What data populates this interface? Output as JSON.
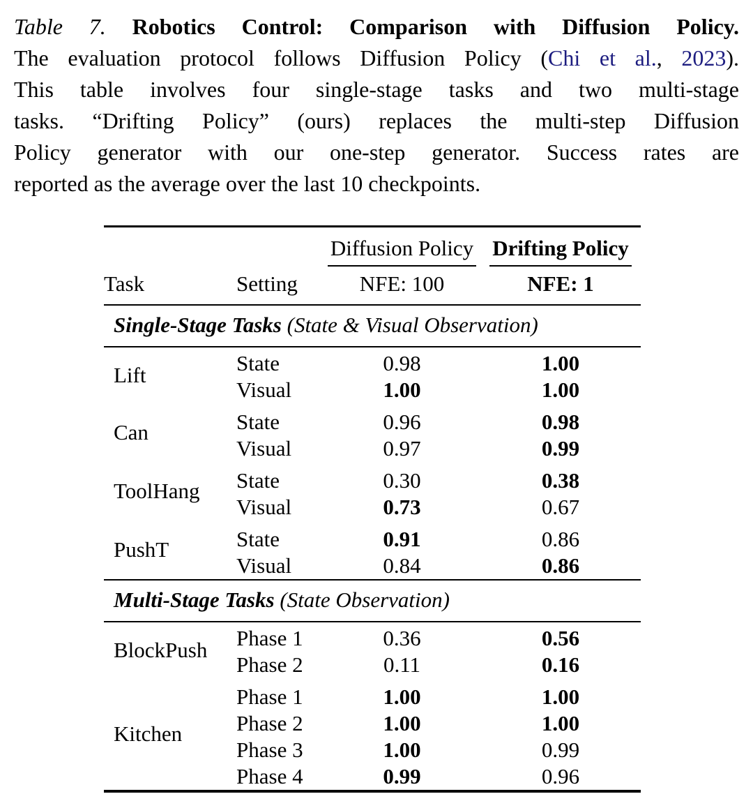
{
  "page": {
    "background": "#ffffff",
    "text_color": "#000000",
    "link_color": "#1d1d80"
  },
  "caption": {
    "label": "Table 7.",
    "title": "Robotics Control: Comparison with Diffusion Policy.",
    "line2_pre": "The evaluation protocol follows Diffusion Policy (",
    "cite_authors": "Chi et al.",
    "cite_sep": ", ",
    "cite_year": "2023",
    "line2_post": ").",
    "line3": "This table involves four single-stage tasks and two multi-stage",
    "line4": "tasks. “Drifting Policy” (ours) replaces the multi-step Diffusion",
    "line5": "Policy generator with our one-step generator. Success rates are",
    "line6": "reported as the average over the last 10 checkpoints."
  },
  "table": {
    "col_headers": {
      "task": "Task",
      "setting": "Setting"
    },
    "groups": [
      {
        "name": "Diffusion Policy",
        "sub": "NFE: 100"
      },
      {
        "name": "Drifting Policy",
        "sub": "NFE: 1"
      }
    ],
    "sections": [
      {
        "title": "Single-Stage Tasks",
        "note": "(State & Visual Observation)",
        "tasks": [
          {
            "task": "Lift",
            "rows": [
              {
                "setting": "State",
                "diffusion": "0.98",
                "diffusion_bold": false,
                "drifting": "1.00",
                "drifting_bold": true
              },
              {
                "setting": "Visual",
                "diffusion": "1.00",
                "diffusion_bold": true,
                "drifting": "1.00",
                "drifting_bold": true
              }
            ]
          },
          {
            "task": "Can",
            "rows": [
              {
                "setting": "State",
                "diffusion": "0.96",
                "diffusion_bold": false,
                "drifting": "0.98",
                "drifting_bold": true
              },
              {
                "setting": "Visual",
                "diffusion": "0.97",
                "diffusion_bold": false,
                "drifting": "0.99",
                "drifting_bold": true
              }
            ]
          },
          {
            "task": "ToolHang",
            "rows": [
              {
                "setting": "State",
                "diffusion": "0.30",
                "diffusion_bold": false,
                "drifting": "0.38",
                "drifting_bold": true
              },
              {
                "setting": "Visual",
                "diffusion": "0.73",
                "diffusion_bold": true,
                "drifting": "0.67",
                "drifting_bold": false
              }
            ]
          },
          {
            "task": "PushT",
            "rows": [
              {
                "setting": "State",
                "diffusion": "0.91",
                "diffusion_bold": true,
                "drifting": "0.86",
                "drifting_bold": false
              },
              {
                "setting": "Visual",
                "diffusion": "0.84",
                "diffusion_bold": false,
                "drifting": "0.86",
                "drifting_bold": true
              }
            ]
          }
        ]
      },
      {
        "title": "Multi-Stage Tasks",
        "note": "(State Observation)",
        "tasks": [
          {
            "task": "BlockPush",
            "rows": [
              {
                "setting": "Phase 1",
                "diffusion": "0.36",
                "diffusion_bold": false,
                "drifting": "0.56",
                "drifting_bold": true
              },
              {
                "setting": "Phase 2",
                "diffusion": "0.11",
                "diffusion_bold": false,
                "drifting": "0.16",
                "drifting_bold": true
              }
            ]
          },
          {
            "task": "Kitchen",
            "rows": [
              {
                "setting": "Phase 1",
                "diffusion": "1.00",
                "diffusion_bold": true,
                "drifting": "1.00",
                "drifting_bold": true
              },
              {
                "setting": "Phase 2",
                "diffusion": "1.00",
                "diffusion_bold": true,
                "drifting": "1.00",
                "drifting_bold": true
              },
              {
                "setting": "Phase 3",
                "diffusion": "1.00",
                "diffusion_bold": true,
                "drifting": "0.99",
                "drifting_bold": false
              },
              {
                "setting": "Phase 4",
                "diffusion": "0.99",
                "diffusion_bold": true,
                "drifting": "0.96",
                "drifting_bold": false
              }
            ]
          }
        ]
      }
    ]
  }
}
